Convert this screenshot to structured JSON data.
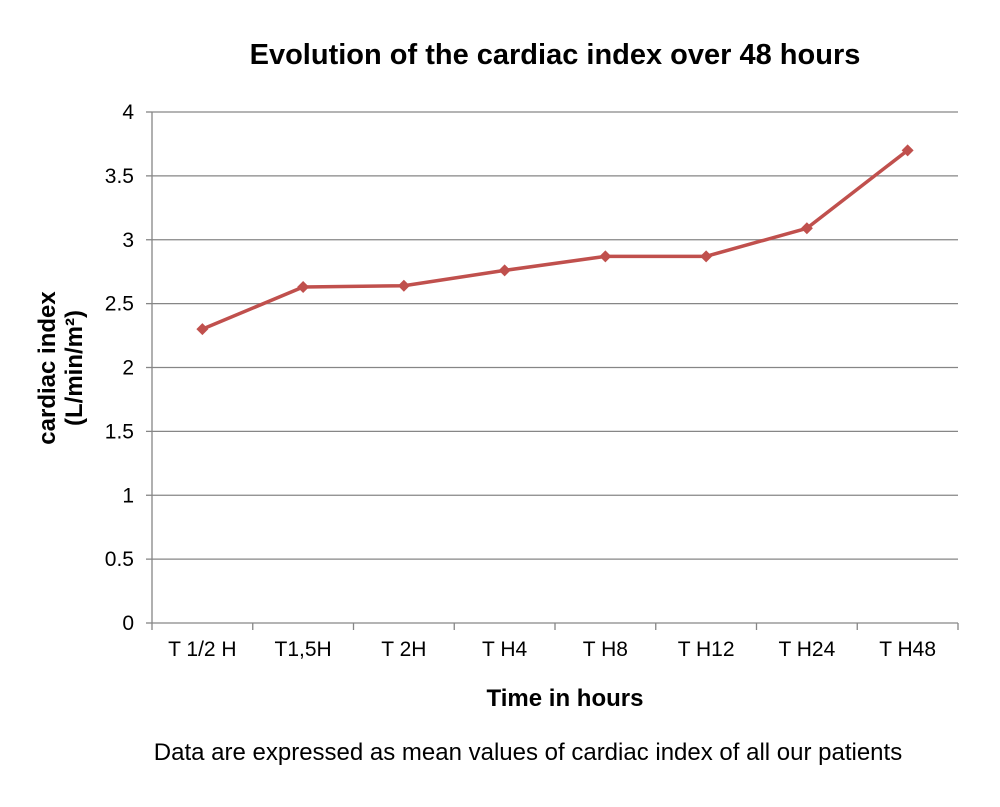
{
  "chart_data": {
    "type": "line",
    "title": "Evolution of the cardiac index over 48 hours",
    "xlabel": "Time in hours",
    "ylabel_line1": "cardiac index",
    "ylabel_line2": "(L/min/m²)",
    "categories": [
      "T 1/2 H",
      "T1,5H",
      "T 2H",
      "T H4",
      "T H8",
      "T H12",
      "T H24",
      "T H48"
    ],
    "series": [
      {
        "values": [
          2.3,
          2.63,
          2.64,
          2.76,
          2.87,
          2.87,
          3.09,
          3.7
        ],
        "color": "#c0504d"
      }
    ],
    "ylim": [
      0,
      4
    ],
    "yticks": [
      "0",
      "0.5",
      "1",
      "1.5",
      "2",
      "2.5",
      "3",
      "3.5",
      "4"
    ],
    "grid": true,
    "legend": "none"
  },
  "footnote": "Data are expressed as mean values of cardiac index of all our patients",
  "colors": {
    "series": "#c0504d",
    "grid": "#868686",
    "axis": "#868686"
  }
}
